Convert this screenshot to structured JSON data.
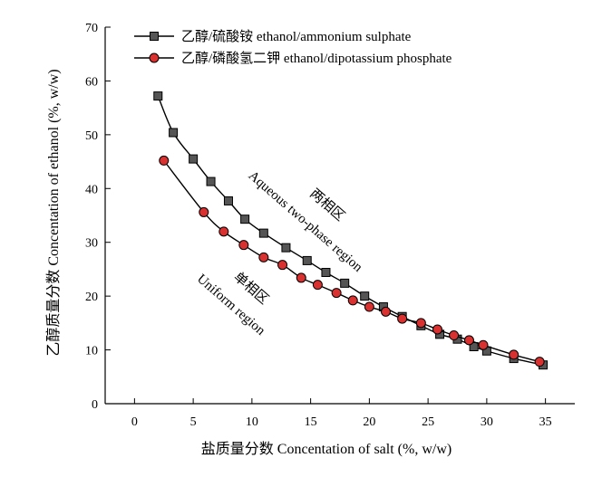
{
  "chart_data": {
    "type": "line",
    "title": "",
    "xlabel": "盐质量分数 Concentation of salt (%, w/w)",
    "ylabel": "乙醇质量分数 Concentation of ethanol (%, w/w)",
    "xlim": [
      -2.5,
      37.5
    ],
    "ylim": [
      0,
      70
    ],
    "x_ticks": [
      0,
      5,
      10,
      15,
      20,
      25,
      30,
      35
    ],
    "y_ticks": [
      0,
      10,
      20,
      30,
      40,
      50,
      60,
      70
    ],
    "legend_position": "top-left",
    "series": [
      {
        "name": "乙醇/硫酸铵 ethanol/ammonium sulphate",
        "marker": "square",
        "color": "#555555",
        "x": [
          2.0,
          3.3,
          5.0,
          6.5,
          8.0,
          9.4,
          11.0,
          12.9,
          14.7,
          16.3,
          17.9,
          19.6,
          21.2,
          22.8,
          24.4,
          26.0,
          27.5,
          28.9,
          30.0,
          32.3,
          34.8
        ],
        "y": [
          57.2,
          50.4,
          45.5,
          41.3,
          37.7,
          34.3,
          31.7,
          29.0,
          26.6,
          24.4,
          22.4,
          20.0,
          18.0,
          16.2,
          14.5,
          12.9,
          12.0,
          10.6,
          9.8,
          8.4,
          7.2
        ]
      },
      {
        "name": "乙醇/磷酸氢二钾 ethanol/dipotassium phosphate",
        "marker": "circle",
        "color": "#d93030",
        "x": [
          2.5,
          5.9,
          7.6,
          9.3,
          11.0,
          12.6,
          14.2,
          15.6,
          17.2,
          18.6,
          20.0,
          21.4,
          22.8,
          24.4,
          25.8,
          27.2,
          28.5,
          29.7,
          32.3,
          34.5
        ],
        "y": [
          45.2,
          35.6,
          32.0,
          29.5,
          27.2,
          25.8,
          23.4,
          22.1,
          20.6,
          19.2,
          18.0,
          17.1,
          15.8,
          15.0,
          13.8,
          12.7,
          11.8,
          10.9,
          9.1,
          7.8
        ]
      }
    ],
    "annotations": [
      {
        "text": "两相区"
      },
      {
        "text": "Aqueous two-phase region"
      },
      {
        "text": "单相区"
      },
      {
        "text": "Uniform region"
      }
    ]
  }
}
